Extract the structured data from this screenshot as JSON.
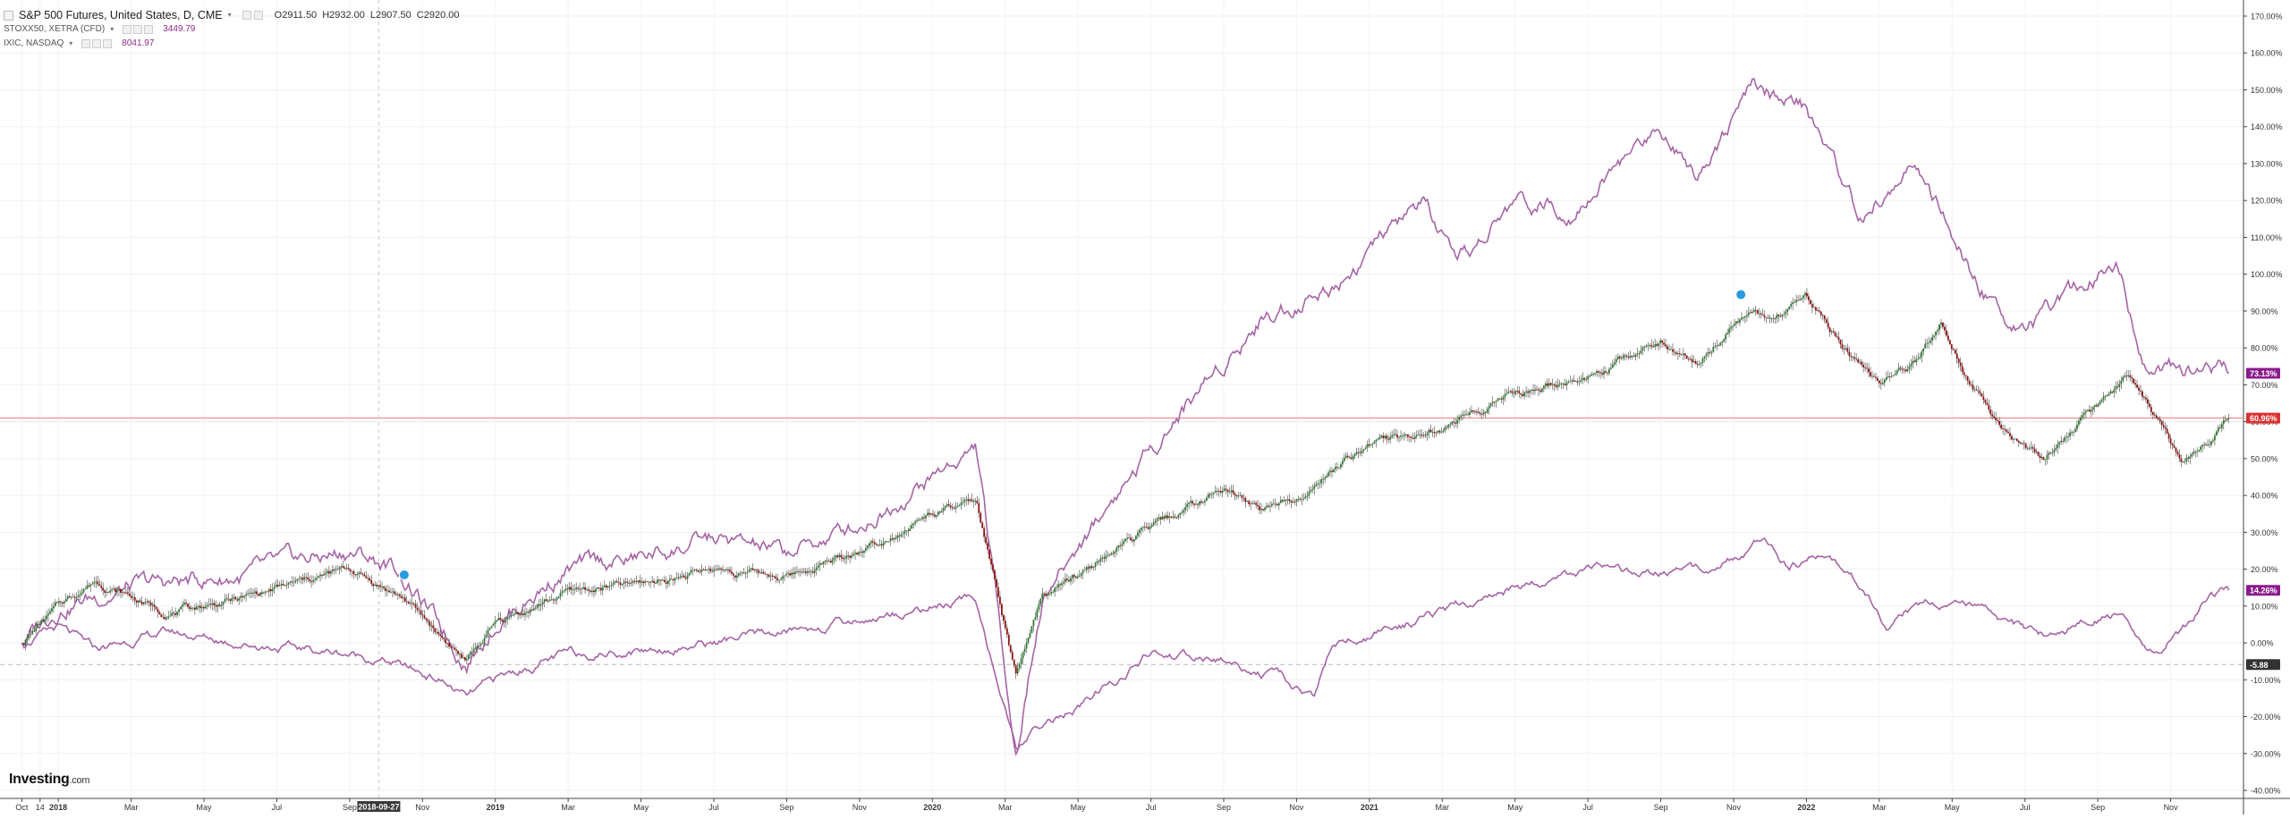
{
  "header": {
    "title": "S&P 500 Futures, United States, D, CME",
    "open": "O2911.50",
    "high": "H2932.00",
    "low": "L2907.50",
    "close": "C2920.00",
    "compare": [
      {
        "label": "STOXX50, XETRA (CFD)",
        "value": "3449.79"
      },
      {
        "label": "IXIC, NASDAQ",
        "value": "8041.97"
      }
    ]
  },
  "branding": {
    "logo": "Investing",
    "logo_suffix": ".com"
  },
  "crosshair_date": "2018-09-27",
  "colors": {
    "candle_up": "#2e7d32",
    "candle_down": "#8e1212",
    "compare_line": "#a565a5",
    "price_line": "#e27a7a",
    "label_purple": "#8b1c8c",
    "label_red": "#d93131",
    "label_dark": "#333333"
  },
  "chart_data": {
    "type": "line",
    "y_axis": {
      "scale": "percent",
      "ylim": [
        -40,
        170
      ],
      "ticks": [
        "-40.00%",
        "-30.00%",
        "-20.00%",
        "-10.00%",
        "0.00%",
        "10.00%",
        "20.00%",
        "30.00%",
        "40.00%",
        "50.00%",
        "60.00%",
        "70.00%",
        "80.00%",
        "90.00%",
        "100.00%",
        "110.00%",
        "120.00%",
        "130.00%",
        "140.00%",
        "150.00%",
        "160.00%",
        "170.00%"
      ]
    },
    "x_axis": {
      "ticks": [
        {
          "label": "Oct",
          "t": 0.0,
          "bold": false
        },
        {
          "label": "14",
          "t": 0.5,
          "bold": false
        },
        {
          "label": "2018",
          "t": 1.0,
          "bold": true
        },
        {
          "label": "Mar",
          "t": 3.0,
          "bold": false
        },
        {
          "label": "May",
          "t": 5.0,
          "bold": false
        },
        {
          "label": "Jul",
          "t": 7.0,
          "bold": false
        },
        {
          "label": "Sep",
          "t": 9.0,
          "bold": false
        },
        {
          "label": "Nov",
          "t": 11.0,
          "bold": false
        },
        {
          "label": "2019",
          "t": 13.0,
          "bold": true
        },
        {
          "label": "Mar",
          "t": 15.0,
          "bold": false
        },
        {
          "label": "May",
          "t": 17.0,
          "bold": false
        },
        {
          "label": "Jul",
          "t": 19.0,
          "bold": false
        },
        {
          "label": "Sep",
          "t": 21.0,
          "bold": false
        },
        {
          "label": "Nov",
          "t": 23.0,
          "bold": false
        },
        {
          "label": "2020",
          "t": 25.0,
          "bold": true
        },
        {
          "label": "Mar",
          "t": 27.0,
          "bold": false
        },
        {
          "label": "May",
          "t": 29.0,
          "bold": false
        },
        {
          "label": "Jul",
          "t": 31.0,
          "bold": false
        },
        {
          "label": "Sep",
          "t": 33.0,
          "bold": false
        },
        {
          "label": "Nov",
          "t": 35.0,
          "bold": false
        },
        {
          "label": "2021",
          "t": 37.0,
          "bold": true
        },
        {
          "label": "Mar",
          "t": 39.0,
          "bold": false
        },
        {
          "label": "May",
          "t": 41.0,
          "bold": false
        },
        {
          "label": "Jul",
          "t": 43.0,
          "bold": false
        },
        {
          "label": "Sep",
          "t": 45.0,
          "bold": false
        },
        {
          "label": "Nov",
          "t": 47.0,
          "bold": false
        },
        {
          "label": "2022",
          "t": 49.0,
          "bold": true
        },
        {
          "label": "Mar",
          "t": 51.0,
          "bold": false
        },
        {
          "label": "May",
          "t": 53.0,
          "bold": false
        },
        {
          "label": "Jul",
          "t": 55.0,
          "bold": false
        },
        {
          "label": "Sep",
          "t": 57.0,
          "bold": false
        },
        {
          "label": "Nov",
          "t": 59.0,
          "bold": false
        }
      ]
    },
    "series": [
      {
        "name": "IXIC, NASDAQ",
        "kind": "line",
        "last_label": "73.13%",
        "anchors": [
          [
            0,
            0
          ],
          [
            1,
            10
          ],
          [
            3,
            15
          ],
          [
            6,
            18
          ],
          [
            9,
            25
          ],
          [
            10.3,
            20
          ],
          [
            12.2,
            -5
          ],
          [
            13,
            6
          ],
          [
            15,
            20
          ],
          [
            17,
            23
          ],
          [
            19,
            28
          ],
          [
            21,
            24
          ],
          [
            23,
            32
          ],
          [
            25,
            45
          ],
          [
            26.2,
            53
          ],
          [
            27.3,
            -30
          ],
          [
            28,
            12
          ],
          [
            30,
            40
          ],
          [
            32,
            65
          ],
          [
            34,
            88
          ],
          [
            36,
            97
          ],
          [
            38.5,
            120
          ],
          [
            39.4,
            100
          ],
          [
            41,
            120
          ],
          [
            42.5,
            118
          ],
          [
            45,
            140
          ],
          [
            46,
            128
          ],
          [
            47.5,
            150
          ],
          [
            49,
            145
          ],
          [
            49.5,
            135
          ],
          [
            50.5,
            115
          ],
          [
            52,
            130
          ],
          [
            53.5,
            100
          ],
          [
            54.5,
            88
          ],
          [
            55.5,
            87
          ],
          [
            57.5,
            105
          ],
          [
            58.2,
            78
          ],
          [
            59,
            75
          ],
          [
            60,
            76
          ],
          [
            60.6,
            73.13
          ]
        ]
      },
      {
        "name": "S&P 500 Futures",
        "kind": "candlestick",
        "last_label": "60.96%",
        "anchors": [
          [
            0,
            0
          ],
          [
            1,
            10
          ],
          [
            2,
            17
          ],
          [
            4,
            8
          ],
          [
            6,
            12
          ],
          [
            9,
            20
          ],
          [
            10.5,
            12
          ],
          [
            12.2,
            -5
          ],
          [
            13,
            5
          ],
          [
            15,
            14
          ],
          [
            17,
            16
          ],
          [
            19,
            20
          ],
          [
            21,
            18
          ],
          [
            23,
            25
          ],
          [
            25,
            35
          ],
          [
            26.2,
            38
          ],
          [
            27.3,
            -10
          ],
          [
            28,
            12
          ],
          [
            30,
            25
          ],
          [
            33,
            42
          ],
          [
            34,
            36
          ],
          [
            35,
            40
          ],
          [
            37,
            54
          ],
          [
            39,
            58
          ],
          [
            41,
            68
          ],
          [
            43,
            72
          ],
          [
            45,
            82
          ],
          [
            46,
            76
          ],
          [
            47.5,
            91
          ],
          [
            48,
            88
          ],
          [
            49,
            93
          ],
          [
            50,
            81
          ],
          [
            51,
            70
          ],
          [
            52,
            76
          ],
          [
            52.7,
            88
          ],
          [
            53.5,
            70
          ],
          [
            54.5,
            57
          ],
          [
            55.5,
            50
          ],
          [
            57,
            64
          ],
          [
            57.8,
            72
          ],
          [
            58.5,
            62
          ],
          [
            59.3,
            48
          ],
          [
            60,
            55
          ],
          [
            60.6,
            60.96
          ]
        ]
      },
      {
        "name": "STOXX50, XETRA (CFD)",
        "kind": "line",
        "last_label": "14.26%",
        "anchors": [
          [
            0,
            0
          ],
          [
            1,
            4
          ],
          [
            2,
            -2
          ],
          [
            4,
            3
          ],
          [
            6,
            0
          ],
          [
            9,
            -3
          ],
          [
            10,
            -5
          ],
          [
            11.5,
            -10
          ],
          [
            12.2,
            -15
          ],
          [
            13,
            -10
          ],
          [
            15,
            -3
          ],
          [
            17,
            -2
          ],
          [
            19,
            0
          ],
          [
            21,
            3
          ],
          [
            23,
            6
          ],
          [
            25,
            10
          ],
          [
            26.2,
            12
          ],
          [
            27.3,
            -30
          ],
          [
            28,
            -22
          ],
          [
            29,
            -18
          ],
          [
            31,
            -3
          ],
          [
            33,
            -5
          ],
          [
            34.5,
            -10
          ],
          [
            35.5,
            -15
          ],
          [
            36,
            0
          ],
          [
            37,
            2
          ],
          [
            39,
            8
          ],
          [
            41,
            15
          ],
          [
            43,
            20
          ],
          [
            44.5,
            18
          ],
          [
            46,
            20
          ],
          [
            47,
            23
          ],
          [
            47.8,
            28
          ],
          [
            48.5,
            20
          ],
          [
            49.5,
            24
          ],
          [
            50.5,
            16
          ],
          [
            51.2,
            5
          ],
          [
            52,
            10
          ],
          [
            53,
            12
          ],
          [
            54.5,
            5
          ],
          [
            55.5,
            2
          ],
          [
            56.5,
            5
          ],
          [
            57.6,
            8
          ],
          [
            58.5,
            -3
          ],
          [
            59.5,
            5
          ],
          [
            60,
            12
          ],
          [
            60.6,
            14.26
          ]
        ]
      }
    ],
    "horizontal_lines": [
      {
        "value": 60.96,
        "style": "solid"
      },
      {
        "value": -5.88,
        "style": "dashed",
        "label": "-5.88"
      }
    ],
    "markers": [
      {
        "t": 10.5,
        "value": 17
      },
      {
        "t": 47.2,
        "value": 93
      }
    ],
    "crosshair_t": 9.8
  }
}
